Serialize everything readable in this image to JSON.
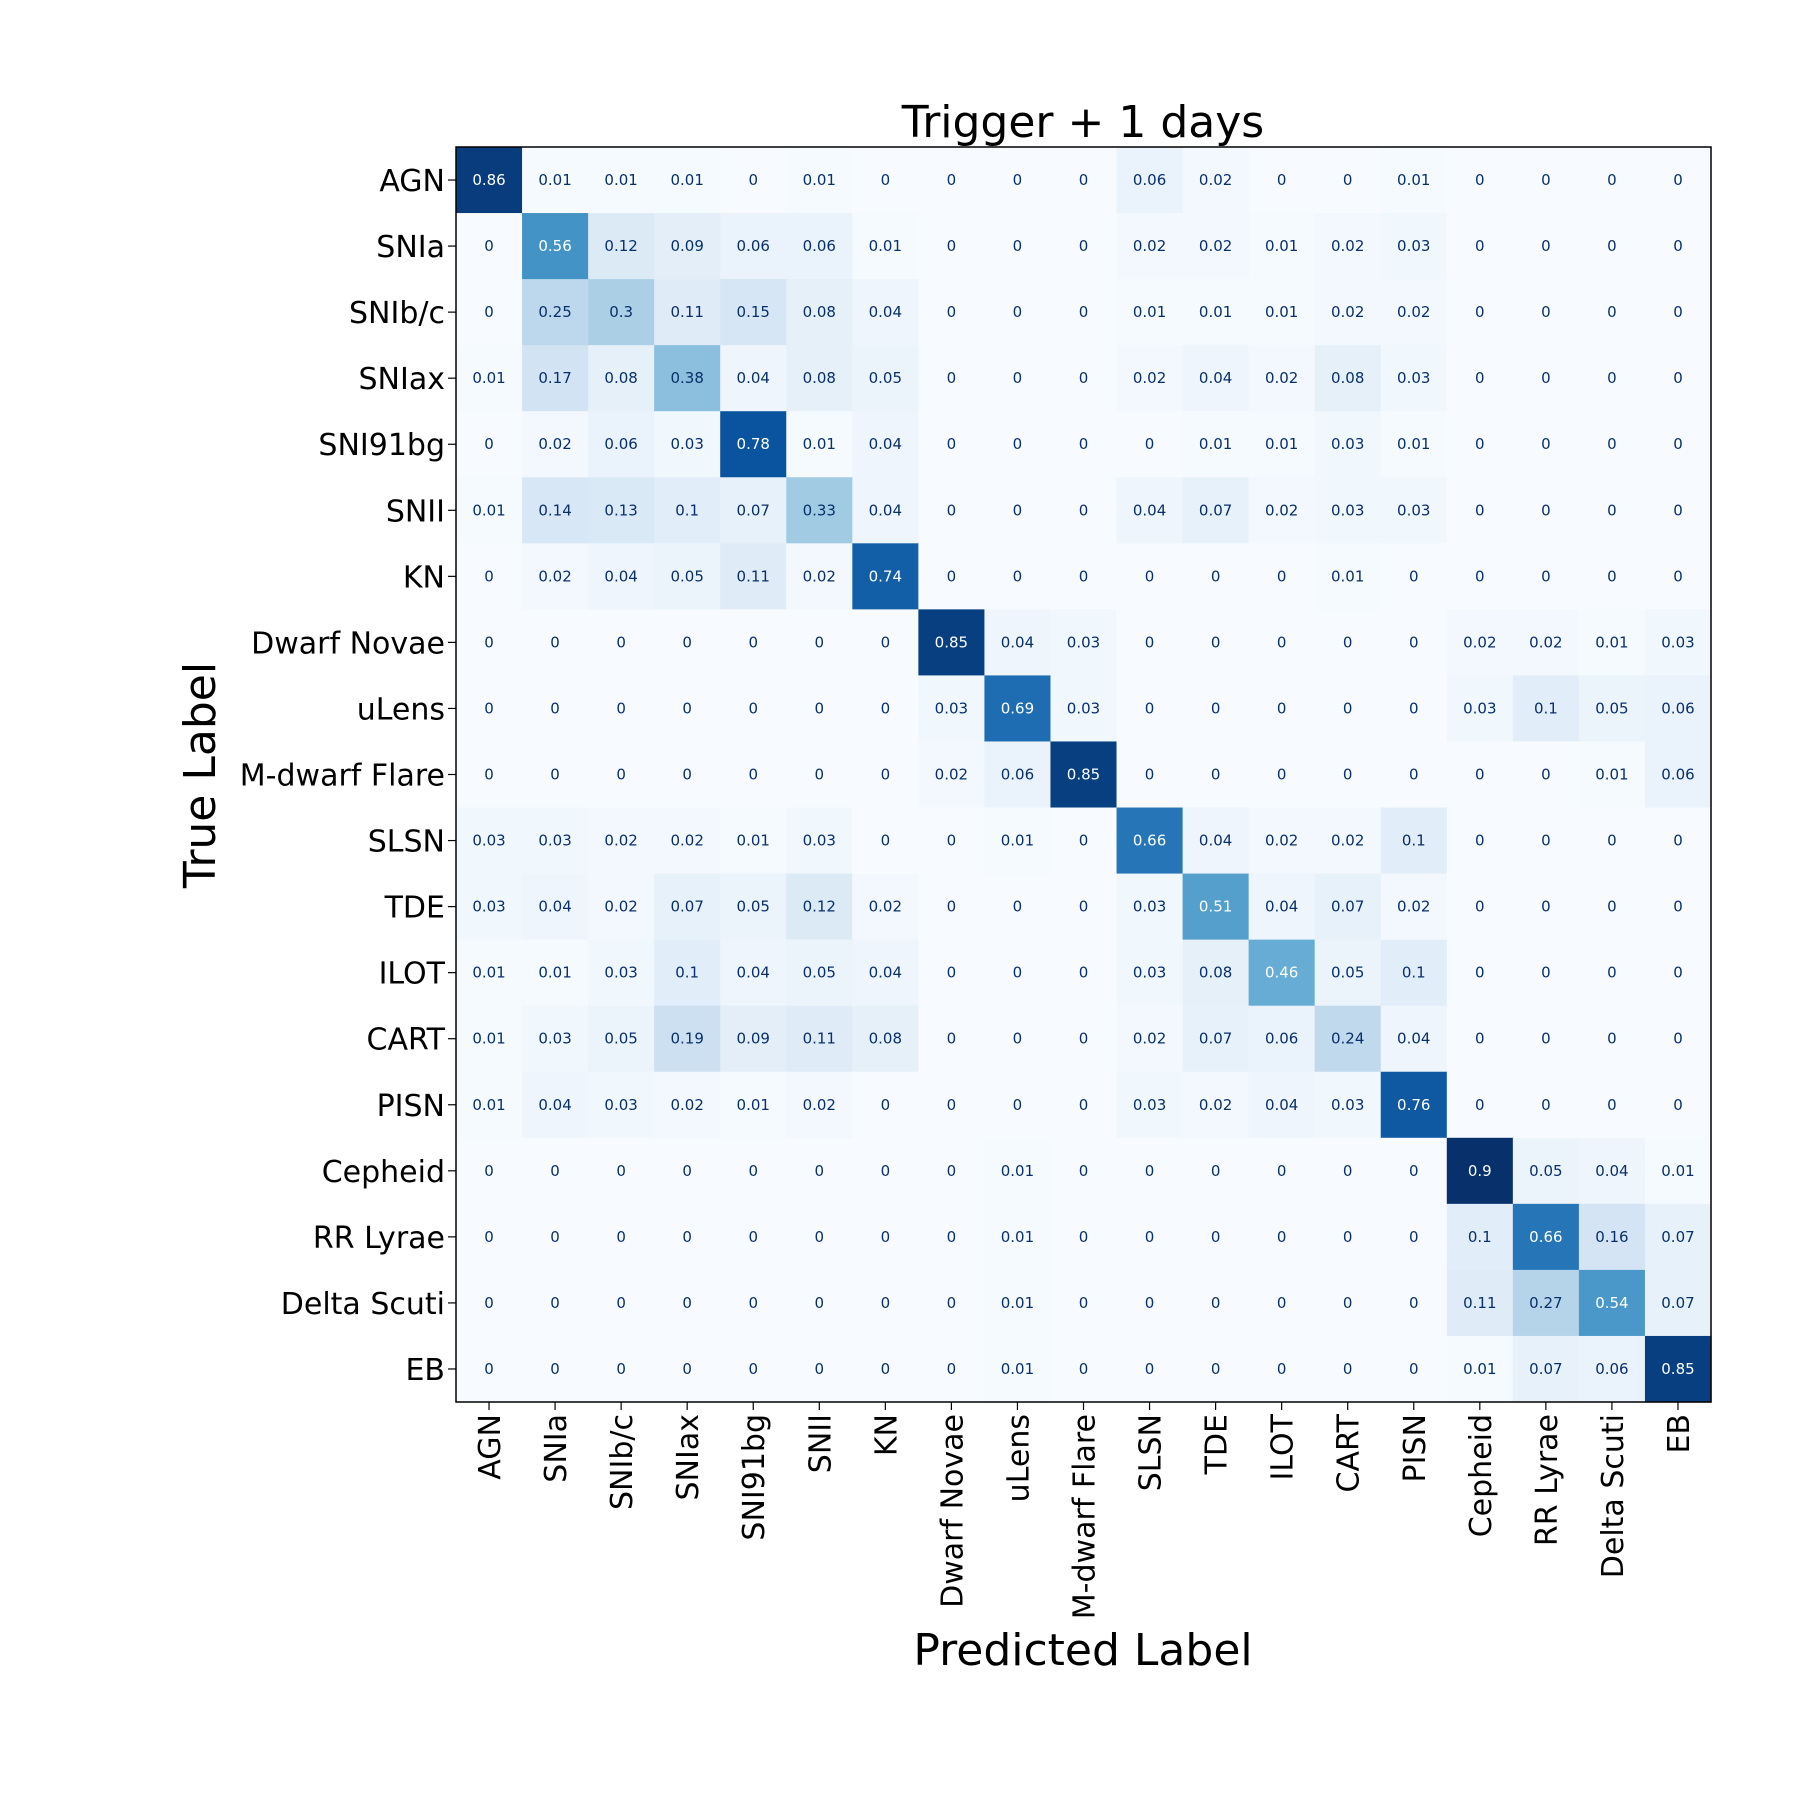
{
  "chart_data": {
    "type": "heatmap",
    "title": "Trigger + 1 days",
    "xlabel": "Predicted Label",
    "ylabel": "True Label",
    "colormap": "Blues",
    "vmin": 0,
    "vmax": 0.9,
    "grid": false,
    "categories": [
      "AGN",
      "SNIa",
      "SNIb/c",
      "SNIax",
      "SNI91bg",
      "SNII",
      "KN",
      "Dwarf Novae",
      "uLens",
      "M-dwarf Flare",
      "SLSN",
      "TDE",
      "ILOT",
      "CART",
      "PISN",
      "Cepheid",
      "RR Lyrae",
      "Delta Scuti",
      "EB"
    ],
    "matrix": [
      [
        0.86,
        0.01,
        0.01,
        0.01,
        0,
        0.01,
        0,
        0,
        0,
        0,
        0.06,
        0.02,
        0,
        0,
        0.01,
        0,
        0,
        0,
        0
      ],
      [
        0,
        0.56,
        0.12,
        0.09,
        0.06,
        0.06,
        0.01,
        0,
        0,
        0,
        0.02,
        0.02,
        0.01,
        0.02,
        0.03,
        0,
        0,
        0,
        0
      ],
      [
        0,
        0.25,
        0.3,
        0.11,
        0.15,
        0.08,
        0.04,
        0,
        0,
        0,
        0.01,
        0.01,
        0.01,
        0.02,
        0.02,
        0,
        0,
        0,
        0
      ],
      [
        0.01,
        0.17,
        0.08,
        0.38,
        0.04,
        0.08,
        0.05,
        0,
        0,
        0,
        0.02,
        0.04,
        0.02,
        0.08,
        0.03,
        0,
        0,
        0,
        0
      ],
      [
        0,
        0.02,
        0.06,
        0.03,
        0.78,
        0.01,
        0.04,
        0,
        0,
        0,
        0,
        0.01,
        0.01,
        0.03,
        0.01,
        0,
        0,
        0,
        0
      ],
      [
        0.01,
        0.14,
        0.13,
        0.1,
        0.07,
        0.33,
        0.04,
        0,
        0,
        0,
        0.04,
        0.07,
        0.02,
        0.03,
        0.03,
        0,
        0,
        0,
        0
      ],
      [
        0,
        0.02,
        0.04,
        0.05,
        0.11,
        0.02,
        0.74,
        0,
        0,
        0,
        0,
        0,
        0,
        0.01,
        0,
        0,
        0,
        0,
        0
      ],
      [
        0,
        0,
        0,
        0,
        0,
        0,
        0,
        0.85,
        0.04,
        0.03,
        0,
        0,
        0,
        0,
        0,
        0.02,
        0.02,
        0.01,
        0.03
      ],
      [
        0,
        0,
        0,
        0,
        0,
        0,
        0,
        0.03,
        0.69,
        0.03,
        0,
        0,
        0,
        0,
        0,
        0.03,
        0.1,
        0.05,
        0.06
      ],
      [
        0,
        0,
        0,
        0,
        0,
        0,
        0,
        0.02,
        0.06,
        0.85,
        0,
        0,
        0,
        0,
        0,
        0,
        0,
        0.01,
        0.06
      ],
      [
        0.03,
        0.03,
        0.02,
        0.02,
        0.01,
        0.03,
        0,
        0,
        0.01,
        0,
        0.66,
        0.04,
        0.02,
        0.02,
        0.1,
        0,
        0,
        0,
        0
      ],
      [
        0.03,
        0.04,
        0.02,
        0.07,
        0.05,
        0.12,
        0.02,
        0,
        0,
        0,
        0.03,
        0.51,
        0.04,
        0.07,
        0.02,
        0,
        0,
        0,
        0
      ],
      [
        0.01,
        0.01,
        0.03,
        0.1,
        0.04,
        0.05,
        0.04,
        0,
        0,
        0,
        0.03,
        0.08,
        0.46,
        0.05,
        0.1,
        0,
        0,
        0,
        0
      ],
      [
        0.01,
        0.03,
        0.05,
        0.19,
        0.09,
        0.11,
        0.08,
        0,
        0,
        0,
        0.02,
        0.07,
        0.06,
        0.24,
        0.04,
        0,
        0,
        0,
        0
      ],
      [
        0.01,
        0.04,
        0.03,
        0.02,
        0.01,
        0.02,
        0,
        0,
        0,
        0,
        0.03,
        0.02,
        0.04,
        0.03,
        0.76,
        0,
        0,
        0,
        0
      ],
      [
        0,
        0,
        0,
        0,
        0,
        0,
        0,
        0,
        0.01,
        0,
        0,
        0,
        0,
        0,
        0,
        0.9,
        0.05,
        0.04,
        0.01
      ],
      [
        0,
        0,
        0,
        0,
        0,
        0,
        0,
        0,
        0.01,
        0,
        0,
        0,
        0,
        0,
        0,
        0.1,
        0.66,
        0.16,
        0.07
      ],
      [
        0,
        0,
        0,
        0,
        0,
        0,
        0,
        0,
        0.01,
        0,
        0,
        0,
        0,
        0,
        0,
        0.11,
        0.27,
        0.54,
        0.07
      ],
      [
        0,
        0,
        0,
        0,
        0,
        0,
        0,
        0,
        0.01,
        0,
        0,
        0,
        0,
        0,
        0,
        0.01,
        0.07,
        0.06,
        0.85
      ]
    ]
  }
}
